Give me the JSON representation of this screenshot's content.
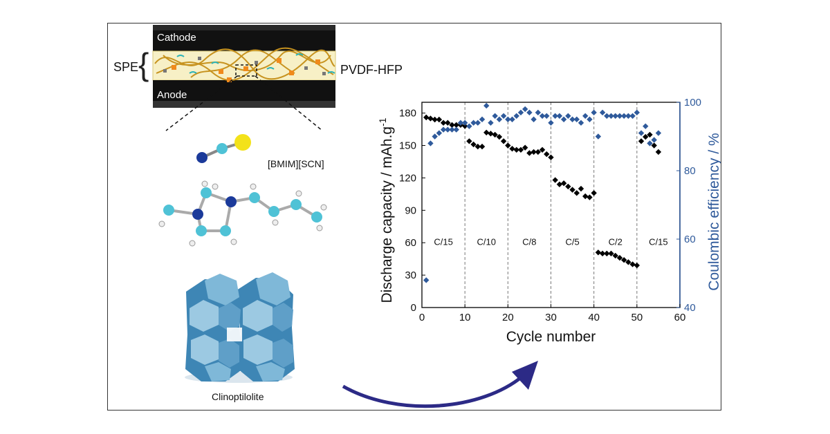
{
  "scheme": {
    "cathode_label": "Cathode",
    "anode_label": "Anode",
    "spe_label": "SPE",
    "spe_brace": "{",
    "membrane_label": "PVDF-HFP",
    "ionic_liquid_label": "[BMIM][SCN]",
    "zeolite_label": "Clinoptilolite"
  },
  "colors": {
    "discharge": "#000000",
    "coulombic": "#2f5a9b",
    "arrow": "#2c2a86",
    "electrode": "#111111",
    "spe_fill": "#f7f0c6",
    "polymer": "#c7931f",
    "filler_orange": "#f08a1c",
    "ion": "#2bb3b8"
  },
  "chart_data": {
    "type": "scatter",
    "xlabel": "Cycle number",
    "ylabel": "Discharge capacity / mAh.g",
    "ylabel_superscript": "-1",
    "y2label": "Coulombic efficiency / %",
    "xlim": [
      0,
      60
    ],
    "ylim": [
      0,
      190
    ],
    "y2lim": [
      40,
      100
    ],
    "xticks": [
      0,
      10,
      20,
      30,
      40,
      50,
      60
    ],
    "yticks": [
      0,
      30,
      60,
      90,
      120,
      150,
      180
    ],
    "y2ticks": [
      40,
      60,
      80,
      100
    ],
    "rate_boundaries": [
      10,
      20,
      30,
      40,
      50
    ],
    "rate_labels": [
      {
        "label": "C/15",
        "x": 5,
        "y": 58
      },
      {
        "label": "C/10",
        "x": 15,
        "y": 58
      },
      {
        "label": "C/8",
        "x": 25,
        "y": 58
      },
      {
        "label": "C/5",
        "x": 35,
        "y": 58
      },
      {
        "label": "C/2",
        "x": 45,
        "y": 58
      },
      {
        "label": "C/15",
        "x": 55,
        "y": 58
      }
    ],
    "series": [
      {
        "name": "",
        "axis": "left",
        "marker": "diamond",
        "x": [
          1,
          2,
          3,
          4,
          5,
          6,
          7,
          8,
          9,
          10,
          11,
          12,
          13,
          14,
          15,
          16,
          17,
          18,
          19,
          20,
          21,
          22,
          23,
          24,
          25,
          26,
          27,
          28,
          29,
          30,
          31,
          32,
          33,
          34,
          35,
          36,
          37,
          38,
          39,
          40,
          41,
          42,
          43,
          44,
          45,
          46,
          47,
          48,
          49,
          50,
          51,
          52,
          53,
          54,
          55
        ],
        "values": [
          176,
          175,
          174,
          174,
          171,
          171,
          169,
          169,
          169,
          168,
          154,
          151,
          149,
          149,
          162,
          161,
          160,
          158,
          154,
          150,
          147,
          146,
          146,
          148,
          143,
          144,
          144,
          146,
          142,
          139,
          118,
          114,
          115,
          112,
          109,
          106,
          110,
          103,
          102,
          106,
          51,
          50,
          50,
          50,
          48,
          46,
          44,
          42,
          40,
          39,
          154,
          158,
          160,
          150,
          144
        ]
      },
      {
        "name": "",
        "axis": "right",
        "marker": "diamond",
        "x": [
          1,
          2,
          3,
          4,
          5,
          6,
          7,
          8,
          9,
          10,
          11,
          12,
          13,
          14,
          15,
          16,
          17,
          18,
          19,
          20,
          21,
          22,
          23,
          24,
          25,
          26,
          27,
          28,
          29,
          30,
          31,
          32,
          33,
          34,
          35,
          36,
          37,
          38,
          39,
          40,
          41,
          42,
          43,
          44,
          45,
          46,
          47,
          48,
          49,
          50,
          51,
          52,
          53,
          54,
          55
        ],
        "values": [
          48,
          88,
          90,
          91,
          92,
          92,
          92,
          92,
          94,
          94,
          93,
          94,
          94,
          95,
          99,
          94,
          96,
          95,
          96,
          95,
          95,
          96,
          97,
          98,
          97,
          95,
          97,
          96,
          96,
          94,
          96,
          96,
          95,
          96,
          95,
          95,
          94,
          96,
          95,
          97,
          90,
          97,
          96,
          96,
          96,
          96,
          96,
          96,
          96,
          97,
          91,
          93,
          88,
          89,
          91
        ]
      }
    ]
  }
}
